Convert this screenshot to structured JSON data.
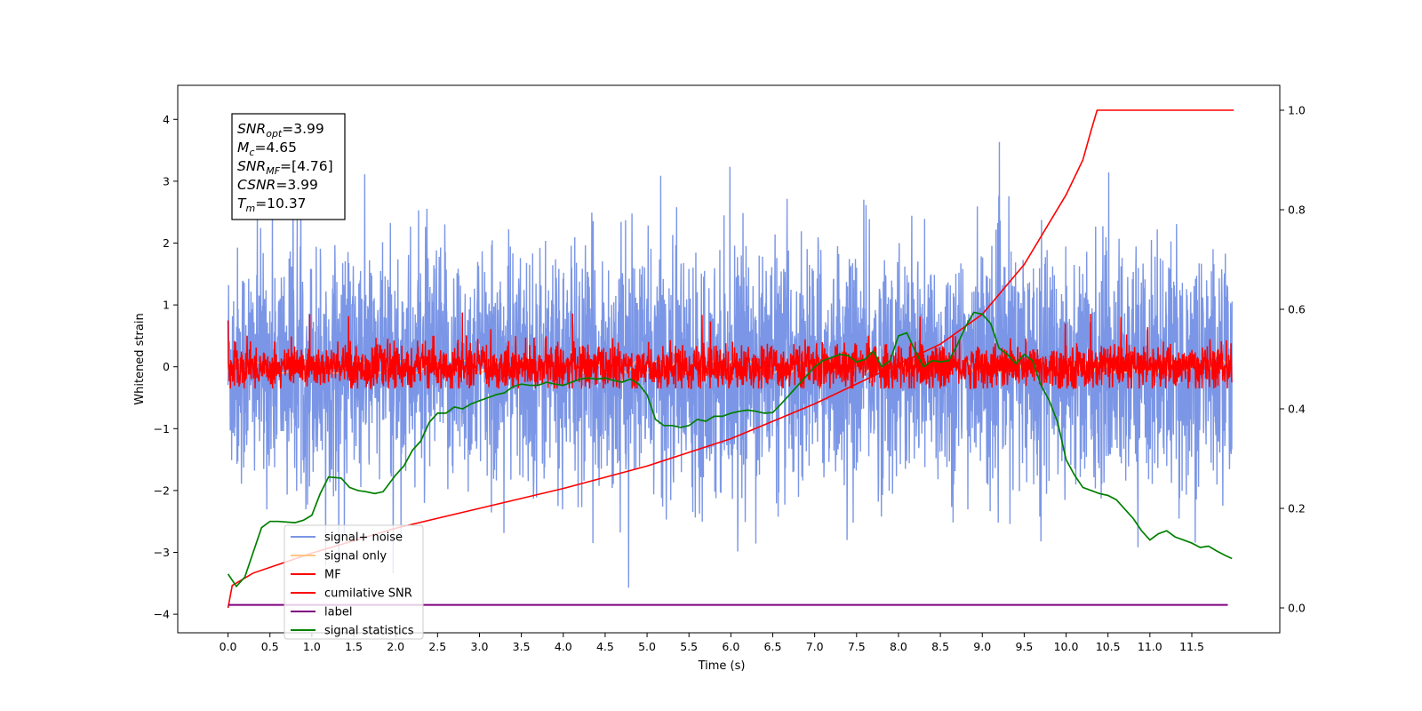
{
  "chart_data": {
    "type": "line",
    "xlabel": "Time (s)",
    "ylabel": "Whitened strain",
    "xlim": [
      -0.6,
      12.55
    ],
    "ylim": [
      -4.3,
      4.55
    ],
    "y2lim": [
      -0.05,
      1.05
    ],
    "xticks": [
      "0.0",
      "0.5",
      "1.0",
      "1.5",
      "2.0",
      "2.5",
      "3.0",
      "3.5",
      "4.0",
      "4.5",
      "5.0",
      "5.5",
      "6.0",
      "6.5",
      "7.0",
      "7.5",
      "8.0",
      "8.5",
      "9.0",
      "9.5",
      "10.0",
      "10.5",
      "11.0",
      "11.5"
    ],
    "yticks": [
      "−4",
      "−3",
      "−2",
      "−1",
      "0",
      "1",
      "2",
      "3",
      "4"
    ],
    "y2ticks": [
      "0.0",
      "0.2",
      "0.4",
      "0.6",
      "0.8",
      "1.0"
    ],
    "annotation": [
      {
        "it": "SNR",
        "sub": "opt",
        "rest": "=3.99"
      },
      {
        "it": "M",
        "sub": "c",
        "rest": "=4.65"
      },
      {
        "it": "SNR",
        "sub": "MF",
        "rest": "=[4.76]"
      },
      {
        "it": "CSNR",
        "sub": "",
        "rest": "=3.99"
      },
      {
        "it": "T",
        "sub": "m",
        "rest": "=10.37"
      }
    ],
    "legend": {
      "position": "lower left",
      "entries": [
        {
          "label": "signal+ noise",
          "color": "#7b96e6"
        },
        {
          "label": "signal only",
          "color": "#ffc680"
        },
        {
          "label": "MF",
          "color": "#ff0000"
        },
        {
          "label": "cumilative SNR",
          "color": "#ff0000"
        },
        {
          "label": "label",
          "color": "#800080"
        },
        {
          "label": "signal statistics",
          "color": "#008000"
        }
      ]
    },
    "series": [
      {
        "name": "signal+ noise",
        "axis": "left",
        "color": "#7b96e6",
        "x_range": [
          0.0,
          11.98
        ],
        "noise_std": 1.0,
        "peak_range": [
          -4.1,
          4.2
        ],
        "style": "dense noise"
      },
      {
        "name": "signal only",
        "axis": "left",
        "color": "#ffc680",
        "x_range": [
          0.0,
          11.98
        ],
        "amplitude": 0.1
      },
      {
        "name": "MF",
        "axis": "left",
        "color": "#ff0000",
        "x_range": [
          0.0,
          11.98
        ],
        "noise_std": 0.18,
        "peak_range": [
          -0.35,
          1.0
        ],
        "style": "dense noise"
      },
      {
        "name": "cumilative SNR",
        "axis": "right",
        "x": [
          0.0,
          0.05,
          0.3,
          1.0,
          2.0,
          3.0,
          4.0,
          5.0,
          6.0,
          7.0,
          7.5,
          8.0,
          8.5,
          9.0,
          9.5,
          10.0,
          10.2,
          10.3,
          10.37,
          12.0
        ],
        "y": [
          0.0,
          0.045,
          0.07,
          0.11,
          0.16,
          0.2,
          0.24,
          0.285,
          0.34,
          0.41,
          0.45,
          0.49,
          0.53,
          0.59,
          0.69,
          0.83,
          0.9,
          0.96,
          1.0,
          1.0
        ]
      },
      {
        "name": "label",
        "axis": "left",
        "color": "#800080",
        "x": [
          0.0,
          11.93
        ],
        "y": [
          -3.85,
          -3.85
        ]
      },
      {
        "name": "signal statistics",
        "axis": "left",
        "color": "#008000",
        "x": [
          0.0,
          0.1,
          0.2,
          0.3,
          0.4,
          0.5,
          0.6,
          0.8,
          0.9,
          1.0,
          1.1,
          1.2,
          1.35,
          1.45,
          1.55,
          1.65,
          1.75,
          1.85,
          2.0,
          2.1,
          2.2,
          2.3,
          2.4,
          2.5,
          2.6,
          2.7,
          2.8,
          2.9,
          3.0,
          3.1,
          3.2,
          3.3,
          3.4,
          3.5,
          3.6,
          3.7,
          3.8,
          3.9,
          4.0,
          4.1,
          4.2,
          4.3,
          4.4,
          4.5,
          4.6,
          4.7,
          4.8,
          4.9,
          5.0,
          5.1,
          5.2,
          5.3,
          5.4,
          5.5,
          5.6,
          5.7,
          5.8,
          5.9,
          6.0,
          6.1,
          6.2,
          6.3,
          6.4,
          6.5,
          6.6,
          6.7,
          6.8,
          6.9,
          7.0,
          7.1,
          7.2,
          7.3,
          7.4,
          7.5,
          7.6,
          7.7,
          7.8,
          7.9,
          8.0,
          8.1,
          8.2,
          8.3,
          8.4,
          8.5,
          8.6,
          8.7,
          8.8,
          8.9,
          9.0,
          9.1,
          9.2,
          9.3,
          9.4,
          9.5,
          9.6,
          9.7,
          9.8,
          9.9,
          10.0,
          10.1,
          10.2,
          10.3,
          10.4,
          10.5,
          10.6,
          10.7,
          10.8,
          10.9,
          11.0,
          11.1,
          11.2,
          11.3,
          11.4,
          11.5,
          11.6,
          11.7,
          11.8,
          11.9,
          11.98
        ],
        "y": [
          -3.35,
          -3.55,
          -3.4,
          -3.0,
          -2.6,
          -2.5,
          -2.5,
          -2.52,
          -2.48,
          -2.4,
          -2.05,
          -1.78,
          -1.8,
          -1.95,
          -2.0,
          -2.02,
          -2.05,
          -2.02,
          -1.75,
          -1.6,
          -1.35,
          -1.2,
          -0.9,
          -0.75,
          -0.75,
          -0.65,
          -0.68,
          -0.6,
          -0.55,
          -0.5,
          -0.45,
          -0.42,
          -0.32,
          -0.28,
          -0.3,
          -0.3,
          -0.25,
          -0.28,
          -0.3,
          -0.25,
          -0.2,
          -0.18,
          -0.2,
          -0.18,
          -0.22,
          -0.25,
          -0.2,
          -0.28,
          -0.45,
          -0.85,
          -0.95,
          -0.95,
          -0.98,
          -0.95,
          -0.85,
          -0.88,
          -0.8,
          -0.8,
          -0.75,
          -0.72,
          -0.7,
          -0.72,
          -0.75,
          -0.74,
          -0.6,
          -0.45,
          -0.3,
          -0.15,
          0.0,
          0.1,
          0.15,
          0.2,
          0.18,
          0.08,
          0.12,
          0.25,
          0.0,
          0.1,
          0.5,
          0.55,
          0.25,
          0.0,
          0.1,
          0.08,
          0.1,
          0.35,
          0.65,
          0.88,
          0.85,
          0.7,
          0.3,
          0.2,
          0.05,
          0.2,
          0.1,
          -0.3,
          -0.55,
          -0.9,
          -1.5,
          -1.75,
          -1.95,
          -2.0,
          -2.05,
          -2.08,
          -2.15,
          -2.3,
          -2.45,
          -2.65,
          -2.8,
          -2.7,
          -2.65,
          -2.75,
          -2.8,
          -2.85,
          -2.92,
          -2.9,
          -2.98,
          -3.05,
          -3.1
        ]
      }
    ]
  }
}
